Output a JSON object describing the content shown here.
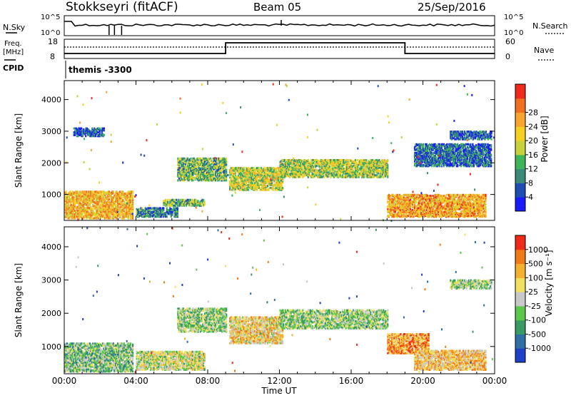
{
  "header": {
    "station": "Stokkseyri (fitACF)",
    "beam": "Beam 05",
    "date": "25/Sep/2016"
  },
  "noise_panel": {
    "left_label": "N.Sky",
    "right_label": "N.Search",
    "left_ticks": [
      "10^5",
      "10^0"
    ],
    "right_ticks": [
      "10^5",
      "10^0"
    ]
  },
  "freq_panel": {
    "left_label_line1": "Freq.",
    "left_label_line2": "[MHz]",
    "left_ticks": [
      "18",
      "8"
    ],
    "right_label": "Nave",
    "right_ticks": [
      "60",
      "0"
    ],
    "cpid_label": "CPID",
    "cpid_value": "themis -3300",
    "nave_steps": [
      {
        "start_h": 0,
        "end_h": 9,
        "level": "low"
      },
      {
        "start_h": 9,
        "end_h": 19,
        "level": "high"
      },
      {
        "start_h": 19,
        "end_h": 24,
        "level": "low"
      }
    ]
  },
  "chart_data": [
    {
      "type": "heatmap",
      "name": "power",
      "xlabel": "",
      "ylabel": "Slant Range [km]",
      "x_range_hours": [
        0,
        24
      ],
      "ylim": [
        180,
        4600
      ],
      "y_ticks": [
        1000,
        2000,
        3000,
        4000
      ],
      "colorbar_label": "Power [dB]",
      "colorbar_ticks": [
        "4",
        "8",
        "12",
        "16",
        "20",
        "24",
        "28"
      ],
      "colors": [
        "#1a1aff",
        "#1e4db3",
        "#3a8a7a",
        "#3fb55a",
        "#c8d23c",
        "#f5d020",
        "#f7a530",
        "#f07020",
        "#ee2a18"
      ],
      "echo_regions": [
        {
          "t0": 0.0,
          "t1": 3.8,
          "r0": 250,
          "r1": 1100,
          "level": 0.75
        },
        {
          "t0": 0.5,
          "t1": 2.2,
          "r0": 2850,
          "r1": 3100,
          "level": 0.2
        },
        {
          "t0": 4.0,
          "t1": 6.3,
          "r0": 300,
          "r1": 600,
          "level": 0.3
        },
        {
          "t0": 5.5,
          "t1": 7.8,
          "r0": 650,
          "r1": 850,
          "level": 0.45
        },
        {
          "t0": 6.3,
          "t1": 9.0,
          "r0": 1450,
          "r1": 2150,
          "level": 0.45
        },
        {
          "t0": 9.2,
          "t1": 12.2,
          "r0": 1150,
          "r1": 1850,
          "level": 0.6
        },
        {
          "t0": 12.0,
          "t1": 18.0,
          "r0": 1550,
          "r1": 2100,
          "level": 0.55
        },
        {
          "t0": 18.0,
          "t1": 23.5,
          "r0": 300,
          "r1": 1000,
          "level": 0.8
        },
        {
          "t0": 19.5,
          "t1": 23.8,
          "r0": 1900,
          "r1": 2600,
          "level": 0.25
        },
        {
          "t0": 21.5,
          "t1": 23.8,
          "r0": 2750,
          "r1": 3000,
          "level": 0.2
        }
      ]
    },
    {
      "type": "heatmap",
      "name": "velocity",
      "xlabel": "Time UT",
      "ylabel": "Slant Range [km]",
      "x_range_hours": [
        0,
        24
      ],
      "ylim": [
        180,
        4600
      ],
      "y_ticks": [
        1000,
        2000,
        3000,
        4000
      ],
      "colorbar_label": "Velocity [m s⁻¹]",
      "colorbar_ticks": [
        "1000",
        "500",
        "100",
        "25",
        "-25",
        "-100",
        "-500",
        "-1000"
      ],
      "colors": [
        "#1e3fc8",
        "#2f6fa6",
        "#3a9a64",
        "#5cc84a",
        "#c8c8c8",
        "#f0e060",
        "#f5b030",
        "#f07a18",
        "#ee2a18"
      ],
      "echo_regions": [
        {
          "t0": 0.0,
          "t1": 3.8,
          "r0": 250,
          "r1": 1100,
          "level": 0.45
        },
        {
          "t0": 4.0,
          "t1": 7.8,
          "r0": 300,
          "r1": 850,
          "level": 0.6
        },
        {
          "t0": 6.3,
          "t1": 9.0,
          "r0": 1450,
          "r1": 2150,
          "level": 0.5
        },
        {
          "t0": 9.2,
          "t1": 12.2,
          "r0": 1100,
          "r1": 1900,
          "level": 0.7
        },
        {
          "t0": 12.0,
          "t1": 18.0,
          "r0": 1550,
          "r1": 2100,
          "level": 0.5
        },
        {
          "t0": 18.0,
          "t1": 20.3,
          "r0": 800,
          "r1": 1400,
          "level": 0.85
        },
        {
          "t0": 19.5,
          "t1": 23.5,
          "r0": 300,
          "r1": 900,
          "level": 0.75
        },
        {
          "t0": 21.5,
          "t1": 23.8,
          "r0": 2750,
          "r1": 3000,
          "level": 0.5
        }
      ]
    }
  ],
  "time_axis": {
    "label": "Time UT",
    "ticks": [
      "00:00",
      "04:00",
      "08:00",
      "12:00",
      "16:00",
      "20:00",
      "00:00"
    ]
  }
}
